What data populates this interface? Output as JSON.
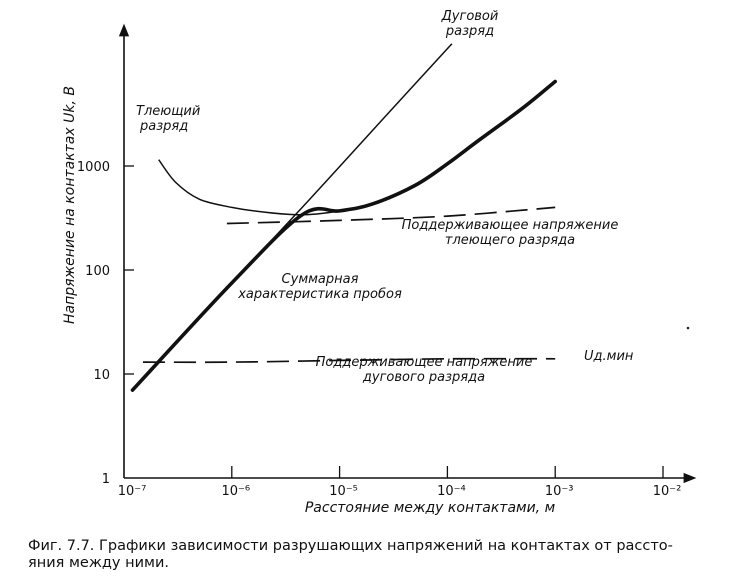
{
  "chart_data": {
    "type": "line",
    "x_scale": "log",
    "y_scale": "log",
    "xlim": [
      1e-07,
      0.01
    ],
    "ylim": [
      1,
      10000
    ],
    "xlabel": "Расстояние между контактами, м",
    "ylabel": "Напряжение на контактах Uk, В",
    "x_tick_labels": [
      "10⁻⁷",
      "10⁻⁶",
      "10⁻⁵",
      "10⁻⁴",
      "10⁻³",
      "10⁻²"
    ],
    "x_tick_values": [
      1e-07,
      1e-06,
      1e-05,
      0.0001,
      0.001,
      0.01
    ],
    "y_tick_labels": [
      "1",
      "10",
      "100",
      "1000"
    ],
    "y_tick_values": [
      1,
      10,
      100,
      1000
    ],
    "grid": false,
    "series": [
      {
        "label_lines": [
          "Тлеющий",
          "разряд"
        ],
        "style": "solid",
        "points": [
          [
            2.1e-07,
            1150
          ],
          [
            3e-07,
            700
          ],
          [
            5e-07,
            480
          ],
          [
            1e-06,
            400
          ],
          [
            2e-06,
            360
          ],
          [
            4e-06,
            340
          ],
          [
            6e-06,
            345
          ],
          [
            1e-05,
            370
          ],
          [
            2e-05,
            430
          ],
          [
            5e-05,
            650
          ],
          [
            0.0001,
            1050
          ],
          [
            0.0002,
            1800
          ],
          [
            0.0005,
            3600
          ],
          [
            0.001,
            6500
          ]
        ]
      },
      {
        "label_lines": [
          "Дуговой",
          "разряд"
        ],
        "style": "solid",
        "points": [
          [
            1.2e-07,
            7
          ],
          [
            1e-06,
            75
          ],
          [
            5e-06,
            450
          ],
          [
            2.5e-05,
            2800
          ],
          [
            0.00011,
            15000
          ]
        ]
      },
      {
        "label_lines": [
          "Поддерживающее напряжение",
          "тлеющего разряда"
        ],
        "style": "dashed",
        "points": [
          [
            9e-07,
            280
          ],
          [
            1e-05,
            300
          ],
          [
            0.0001,
            330
          ],
          [
            0.001,
            400
          ]
        ]
      },
      {
        "label_lines": [
          "Поддерживающее напряжение",
          "дугового разряда"
        ],
        "style": "dashed",
        "points": [
          [
            1.5e-07,
            13
          ],
          [
            1e-06,
            13
          ],
          [
            1e-05,
            13.5
          ],
          [
            0.0001,
            14
          ],
          [
            0.001,
            14
          ]
        ]
      },
      {
        "label_lines": [
          "Суммарная",
          "характеристика пробоя"
        ],
        "style": "bold",
        "points": [
          [
            1.2e-07,
            7
          ],
          [
            1e-06,
            75
          ],
          [
            4.5e-06,
            340
          ],
          [
            1e-05,
            370
          ],
          [
            2e-05,
            430
          ],
          [
            5e-05,
            650
          ],
          [
            0.0001,
            1050
          ],
          [
            0.0002,
            1800
          ],
          [
            0.0005,
            3600
          ],
          [
            0.001,
            6500
          ]
        ]
      }
    ],
    "annotations": [
      "Uд.мин"
    ]
  },
  "caption_lines": [
    "Фиг. 7.7. Графики зависимости разрушающих напряжений на контактах от рассто-",
    "яния между ними."
  ]
}
